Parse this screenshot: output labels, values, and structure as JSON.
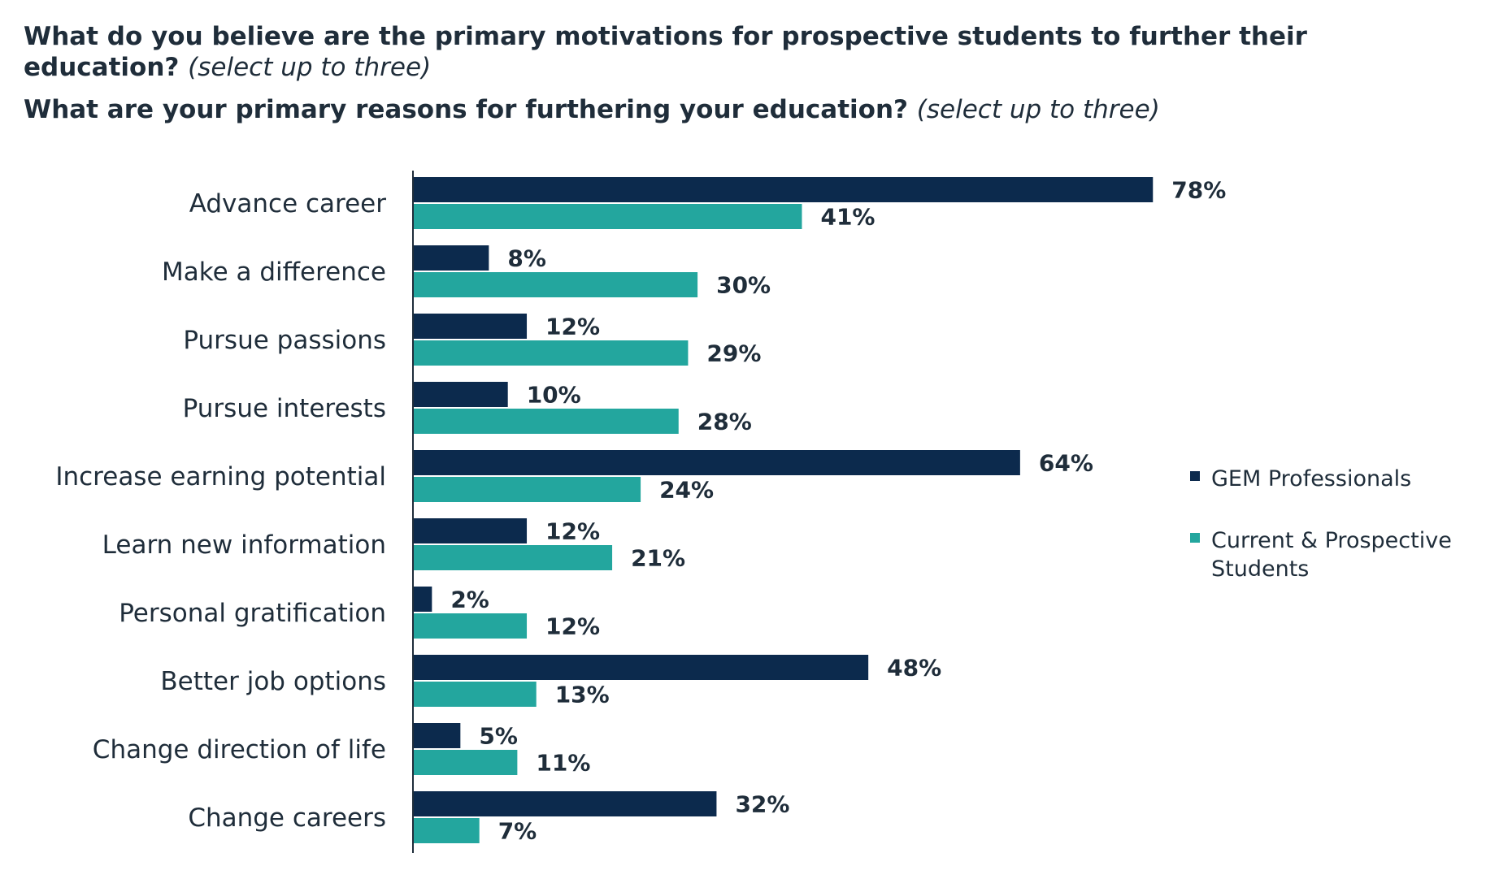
{
  "header": {
    "q1_bold": "What do you believe are the primary motivations for prospective students to further their education?",
    "q1_note": "(select up to three)",
    "q2_bold": "What are your primary reasons for furthering your education?",
    "q2_note": "(select up to three)"
  },
  "colors": {
    "gem": "#0c2a4d",
    "students": "#23a69e",
    "text": "#1f2d3a"
  },
  "chart_data": {
    "type": "bar",
    "orientation": "horizontal",
    "categories": [
      "Advance career",
      "Make a difference",
      "Pursue passions",
      "Pursue interests",
      "Increase earning potential",
      "Learn new information",
      "Personal gratification",
      "Better job options",
      "Change direction of life",
      "Change careers"
    ],
    "series": [
      {
        "name": "GEM Professionals",
        "values": [
          78,
          8,
          12,
          10,
          64,
          12,
          2,
          48,
          5,
          32
        ]
      },
      {
        "name": "Current & Prospective Students",
        "values": [
          41,
          30,
          29,
          28,
          24,
          21,
          12,
          13,
          11,
          7
        ]
      }
    ],
    "value_suffix": "%",
    "legend_position": "right",
    "xlim": [
      0,
      100
    ],
    "grid": false
  }
}
